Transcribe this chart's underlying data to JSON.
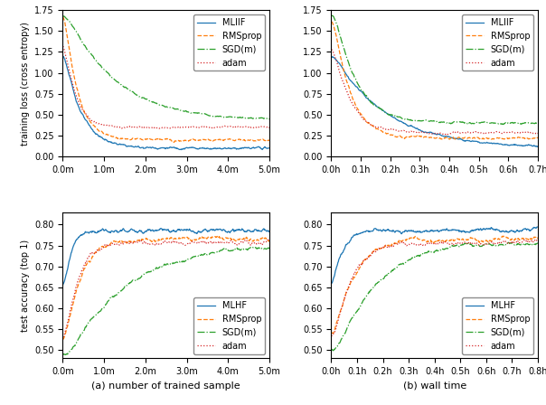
{
  "fig_size": [
    6.04,
    4.48
  ],
  "dpi": 100,
  "colors": {
    "MLHF": "#1f77b4",
    "RMSprop": "#ff7f0e",
    "SGD": "#2ca02c",
    "adam": "#d62728"
  },
  "legend_labels_loss": [
    "MLIIF",
    "RMSprop",
    "SGD(m)",
    "adam"
  ],
  "legend_labels_acc": [
    "MLHF",
    "RMSprop",
    "SGD(m)",
    "adam"
  ],
  "xlabel_a": "(a) number of trained sample",
  "xlabel_b": "(b) wall time",
  "ylabel_loss": "training loss (cross entropy)",
  "ylabel_acc": "test accuracy (top 1)",
  "ylim_loss": [
    0.0,
    1.75
  ],
  "ylim_acc": [
    0.48,
    0.83
  ],
  "xlim_samples": [
    0.0,
    5000000
  ],
  "xlim_time_loss": [
    0.0,
    0.7
  ],
  "xlim_time_acc": [
    0.0,
    0.8
  ]
}
